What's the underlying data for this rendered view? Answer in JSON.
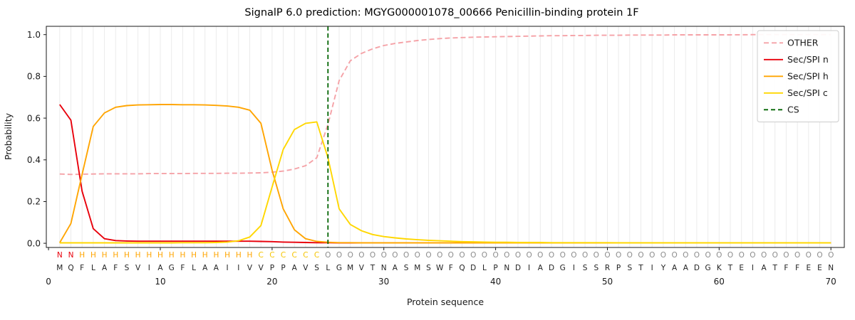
{
  "chart_data": {
    "type": "line",
    "title": "SignalP 6.0 prediction: MGYG000001078_00666 Penicillin-binding protein 1F",
    "xlabel": "Protein sequence",
    "ylabel": "Probability",
    "xlim": [
      -0.2,
      71.2
    ],
    "ylim": [
      -0.02,
      1.04
    ],
    "xticks": [
      0,
      10,
      20,
      30,
      40,
      50,
      60,
      70
    ],
    "yticks": [
      "0.0",
      "0.2",
      "0.4",
      "0.6",
      "0.8",
      "1.0"
    ],
    "grid": "vertical-line-per-residue",
    "legend_position": "upper-right",
    "sequence": "MQFLAFSVIAGFLAAIIVVPPAVSLGMVTNASMSWFQDLPNDIADGISSRPSTIYAADGKTEIATFFEEN",
    "region_labels": "NNHHHHHHHHHHHHHHHHCCCCCCOOOOOOOOOOOOOOOOOOOOOOOOOOOOOOOOOOOOOOOOOOOOOO",
    "region_colors": {
      "N": "#e8000b",
      "H": "#ffa502",
      "C": "#f5c400",
      "O": "#8c8c8c"
    },
    "sequence_color": "#1f1f1f",
    "cs": {
      "name": "CS",
      "position": 25,
      "color": "#006400",
      "dash": "6,4"
    },
    "series": [
      {
        "name": "OTHER",
        "color": "#f5a2a7",
        "dash": "7,4",
        "values": [
          0.332,
          0.33,
          0.331,
          0.332,
          0.333,
          0.333,
          0.333,
          0.333,
          0.334,
          0.334,
          0.334,
          0.334,
          0.335,
          0.335,
          0.335,
          0.336,
          0.336,
          0.337,
          0.338,
          0.341,
          0.346,
          0.356,
          0.372,
          0.41,
          0.57,
          0.78,
          0.875,
          0.91,
          0.932,
          0.948,
          0.958,
          0.965,
          0.972,
          0.977,
          0.981,
          0.984,
          0.986,
          0.988,
          0.989,
          0.99,
          0.991,
          0.992,
          0.993,
          0.994,
          0.995,
          0.995,
          0.996,
          0.996,
          0.997,
          0.997,
          0.997,
          0.998,
          0.998,
          0.998,
          0.998,
          0.999,
          0.999,
          0.999,
          0.999,
          0.999,
          0.999,
          0.9995,
          1.0,
          1.0,
          1.0,
          1.0,
          1.0,
          1.0,
          1.0,
          1.0
        ]
      },
      {
        "name": "Sec/SPI n",
        "color": "#e8000b",
        "dash": null,
        "values": [
          0.665,
          0.59,
          0.25,
          0.07,
          0.022,
          0.013,
          0.011,
          0.01,
          0.01,
          0.01,
          0.01,
          0.01,
          0.01,
          0.01,
          0.01,
          0.01,
          0.01,
          0.01,
          0.009,
          0.008,
          0.006,
          0.005,
          0.004,
          0.003,
          0.003,
          0.002,
          0.002,
          0.002,
          0.002,
          0.002,
          0.002,
          0.002,
          0.002,
          0.002,
          0.002,
          0.002,
          0.002,
          0.002,
          0.002,
          0.002,
          0.002,
          0.002,
          0.002,
          0.002,
          0.002,
          0.002,
          0.002,
          0.002,
          0.002,
          0.002,
          0.002,
          0.002,
          0.002,
          0.002,
          0.002,
          0.002,
          0.002,
          0.002,
          0.002,
          0.002,
          0.002,
          0.002,
          0.002,
          0.002,
          0.002,
          0.002,
          0.002,
          0.002,
          0.002,
          0.002
        ]
      },
      {
        "name": "Sec/SPI h",
        "color": "#ffa502",
        "dash": null,
        "values": [
          0.003,
          0.095,
          0.33,
          0.56,
          0.625,
          0.652,
          0.66,
          0.663,
          0.664,
          0.665,
          0.665,
          0.664,
          0.664,
          0.663,
          0.661,
          0.658,
          0.652,
          0.638,
          0.575,
          0.35,
          0.165,
          0.065,
          0.022,
          0.009,
          0.005,
          0.003,
          0.003,
          0.002,
          0.002,
          0.002,
          0.002,
          0.002,
          0.002,
          0.002,
          0.002,
          0.002,
          0.002,
          0.002,
          0.002,
          0.002,
          0.002,
          0.002,
          0.002,
          0.002,
          0.002,
          0.002,
          0.002,
          0.002,
          0.002,
          0.002,
          0.002,
          0.002,
          0.002,
          0.002,
          0.002,
          0.002,
          0.002,
          0.002,
          0.002,
          0.002,
          0.002,
          0.002,
          0.002,
          0.002,
          0.002,
          0.002,
          0.002,
          0.002,
          0.002,
          0.002
        ]
      },
      {
        "name": "Sec/SPI c",
        "color": "#ffd700",
        "dash": null,
        "values": [
          0.002,
          0.002,
          0.002,
          0.002,
          0.002,
          0.002,
          0.002,
          0.002,
          0.002,
          0.002,
          0.002,
          0.003,
          0.003,
          0.003,
          0.004,
          0.006,
          0.012,
          0.03,
          0.085,
          0.27,
          0.45,
          0.545,
          0.575,
          0.582,
          0.41,
          0.165,
          0.09,
          0.06,
          0.042,
          0.032,
          0.026,
          0.021,
          0.017,
          0.014,
          0.012,
          0.01,
          0.008,
          0.007,
          0.006,
          0.005,
          0.005,
          0.004,
          0.004,
          0.004,
          0.003,
          0.003,
          0.003,
          0.003,
          0.003,
          0.003,
          0.002,
          0.002,
          0.002,
          0.002,
          0.002,
          0.002,
          0.002,
          0.002,
          0.002,
          0.002,
          0.002,
          0.002,
          0.002,
          0.002,
          0.002,
          0.002,
          0.002,
          0.002,
          0.002,
          0.002
        ]
      }
    ]
  }
}
